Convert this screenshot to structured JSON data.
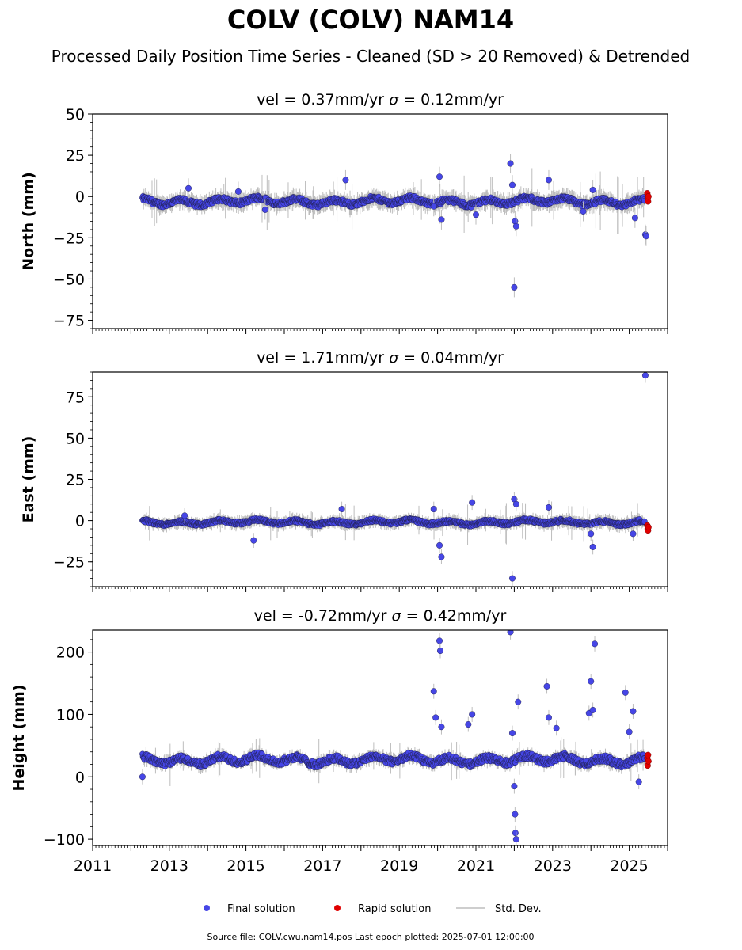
{
  "figure": {
    "title": "COLV (COLV) NAM14",
    "subtitle": "Processed Daily Position Time Series - Cleaned (SD > 20 Removed) & Detrended",
    "source_note": "Source file: COLV.cwu.nam14.pos  Last epoch plotted: 2025-07-01 12:00:00",
    "legend": [
      {
        "label": "Final solution",
        "color": "#4646e6",
        "kind": "marker"
      },
      {
        "label": "Rapid solution",
        "color": "#e00000",
        "kind": "marker"
      },
      {
        "label": "Std. Dev.",
        "color": "#bdbdbd",
        "kind": "line"
      }
    ],
    "colors": {
      "final": "#4646e6",
      "rapid": "#e00000",
      "stddev": "#bdbdbd",
      "edge": "#1a1a3a"
    }
  },
  "chart_data": [
    {
      "type": "scatter",
      "component": "north",
      "title_vel": "vel = 0.37mm/yr",
      "title_sigma": "= 0.12mm/yr",
      "ylabel": "North (mm)",
      "xlim": [
        2011,
        2026
      ],
      "ylim": [
        -80,
        50
      ],
      "yticks": [
        50,
        25,
        0,
        -25,
        -50,
        -75
      ],
      "ytick_labels": [
        "50",
        "25",
        "0",
        "−25",
        "−50",
        "−75"
      ],
      "final_band": {
        "start": 2012.3,
        "end": 2025.4,
        "center": -3,
        "spread": 3,
        "err": 4
      },
      "outliers": [
        [
          2013.5,
          5
        ],
        [
          2014.8,
          3
        ],
        [
          2015.5,
          -8
        ],
        [
          2017.6,
          10
        ],
        [
          2019.9,
          -6
        ],
        [
          2020.05,
          12
        ],
        [
          2020.1,
          -14
        ],
        [
          2021.0,
          -11
        ],
        [
          2021.9,
          20
        ],
        [
          2021.95,
          7
        ],
        [
          2022.0,
          -55
        ],
        [
          2022.02,
          -15
        ],
        [
          2022.05,
          -18
        ],
        [
          2022.9,
          10
        ],
        [
          2023.8,
          -9
        ],
        [
          2024.05,
          4
        ],
        [
          2025.15,
          -13
        ],
        [
          2025.42,
          -23
        ],
        [
          2025.44,
          -24
        ]
      ],
      "rapid": [
        [
          2025.47,
          2
        ],
        [
          2025.48,
          -1
        ],
        [
          2025.49,
          -3
        ],
        [
          2025.5,
          0
        ]
      ]
    },
    {
      "type": "scatter",
      "component": "east",
      "title_vel": "vel = 1.71mm/yr",
      "title_sigma": "= 0.04mm/yr",
      "ylabel": "East (mm)",
      "xlim": [
        2011,
        2026
      ],
      "ylim": [
        -40,
        90
      ],
      "yticks": [
        75,
        50,
        25,
        0,
        -25
      ],
      "ytick_labels": [
        "75",
        "50",
        "25",
        "0",
        "−25"
      ],
      "final_band": {
        "start": 2012.3,
        "end": 2025.4,
        "center": -1,
        "spread": 2,
        "err": 3
      },
      "outliers": [
        [
          2013.4,
          3
        ],
        [
          2015.2,
          -12
        ],
        [
          2017.5,
          7
        ],
        [
          2019.9,
          7
        ],
        [
          2020.05,
          -15
        ],
        [
          2020.1,
          -22
        ],
        [
          2020.9,
          11
        ],
        [
          2021.95,
          -35
        ],
        [
          2022.0,
          13
        ],
        [
          2022.05,
          10
        ],
        [
          2022.9,
          8
        ],
        [
          2024.0,
          -8
        ],
        [
          2024.05,
          -16
        ],
        [
          2025.1,
          -8
        ],
        [
          2025.42,
          88
        ]
      ],
      "rapid": [
        [
          2025.47,
          -3
        ],
        [
          2025.48,
          -5
        ],
        [
          2025.49,
          -6
        ],
        [
          2025.5,
          -4
        ]
      ]
    },
    {
      "type": "scatter",
      "component": "height",
      "title_vel": "vel = -0.72mm/yr",
      "title_sigma": "= 0.42mm/yr",
      "ylabel": "Height (mm)",
      "xlim": [
        2011,
        2026
      ],
      "ylim": [
        -110,
        235
      ],
      "yticks": [
        200,
        100,
        0,
        -100
      ],
      "ytick_labels": [
        "200",
        "100",
        "0",
        "−100"
      ],
      "xticks": [
        2011,
        2013,
        2015,
        2017,
        2019,
        2021,
        2023,
        2025
      ],
      "xtick_labels": [
        "2011",
        "2013",
        "2015",
        "2017",
        "2019",
        "2021",
        "2023",
        "2025"
      ],
      "final_band": {
        "start": 2012.3,
        "end": 2025.4,
        "center": 27,
        "spread": 10,
        "err": 8
      },
      "outliers": [
        [
          2012.3,
          0
        ],
        [
          2019.9,
          137
        ],
        [
          2019.95,
          95
        ],
        [
          2020.05,
          218
        ],
        [
          2020.07,
          202
        ],
        [
          2020.1,
          80
        ],
        [
          2020.9,
          100
        ],
        [
          2020.8,
          84
        ],
        [
          2021.9,
          232
        ],
        [
          2021.95,
          70
        ],
        [
          2022.0,
          -15
        ],
        [
          2022.02,
          -60
        ],
        [
          2022.03,
          -90
        ],
        [
          2022.05,
          -100
        ],
        [
          2022.1,
          120
        ],
        [
          2022.85,
          145
        ],
        [
          2022.9,
          95
        ],
        [
          2023.1,
          78
        ],
        [
          2023.95,
          102
        ],
        [
          2024.0,
          153
        ],
        [
          2024.05,
          107
        ],
        [
          2024.1,
          213
        ],
        [
          2024.9,
          135
        ],
        [
          2025.0,
          72
        ],
        [
          2025.1,
          105
        ],
        [
          2025.25,
          -8
        ]
      ],
      "rapid": [
        [
          2025.47,
          30
        ],
        [
          2025.48,
          18
        ],
        [
          2025.49,
          35
        ],
        [
          2025.5,
          25
        ]
      ]
    }
  ]
}
